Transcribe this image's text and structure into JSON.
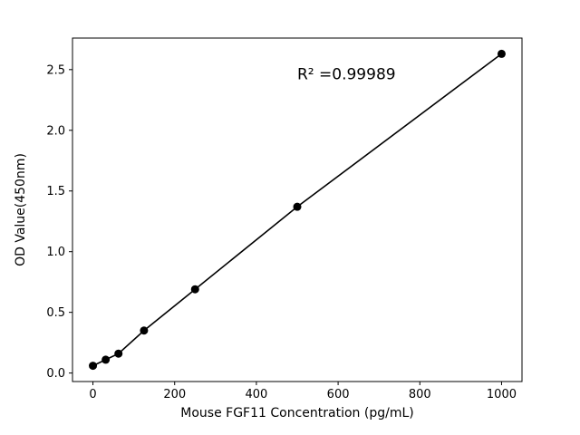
{
  "chart_data": {
    "type": "scatter",
    "title": "",
    "xlabel": "Mouse FGF11 Concentration (pg/mL)",
    "ylabel": "OD Value(450nm)",
    "x": [
      0,
      31.25,
      62.5,
      125,
      250,
      500,
      1000
    ],
    "y": [
      0.06,
      0.11,
      0.16,
      0.35,
      0.69,
      1.37,
      2.63
    ],
    "xlim": [
      -50,
      1050
    ],
    "ylim": [
      -0.07,
      2.76
    ],
    "x_ticks": [
      0,
      200,
      400,
      600,
      800,
      1000
    ],
    "x_tick_labels": [
      "0",
      "200",
      "400",
      "600",
      "800",
      "1000"
    ],
    "y_ticks": [
      0.0,
      0.5,
      1.0,
      1.5,
      2.0,
      2.5
    ],
    "y_tick_labels": [
      "0.0",
      "0.5",
      "1.0",
      "1.5",
      "2.0",
      "2.5"
    ],
    "annotation": {
      "text": "R² =0.99989",
      "x": 500,
      "y": 2.42
    },
    "line_color": "#000000",
    "marker_color": "#000000",
    "marker_radius": 4.5,
    "grid": false,
    "legend_position": "none"
  }
}
